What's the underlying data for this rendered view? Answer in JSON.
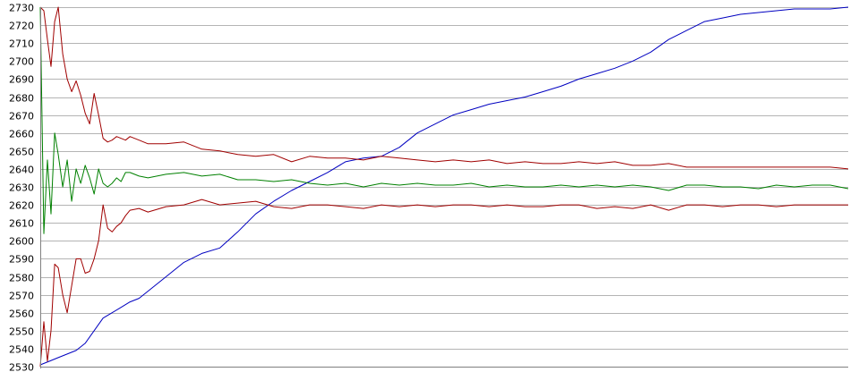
{
  "chart_data": {
    "type": "line",
    "title": "",
    "xlabel": "",
    "ylabel": "",
    "ylim": [
      2530,
      2730
    ],
    "yticks": [
      2530,
      2540,
      2550,
      2560,
      2570,
      2580,
      2590,
      2600,
      2610,
      2620,
      2630,
      2640,
      2650,
      2660,
      2670,
      2680,
      2690,
      2700,
      2710,
      2720,
      2730
    ],
    "xlim": [
      0,
      900
    ],
    "grid": true,
    "legend": "none",
    "series": [
      {
        "color": "#0000c0",
        "x": [
          0,
          10,
          20,
          30,
          40,
          50,
          60,
          70,
          80,
          90,
          100,
          110,
          120,
          140,
          160,
          180,
          200,
          220,
          240,
          260,
          280,
          300,
          320,
          340,
          360,
          380,
          400,
          420,
          440,
          460,
          480,
          500,
          520,
          540,
          560,
          580,
          600,
          620,
          640,
          660,
          680,
          700,
          720,
          740,
          760,
          780,
          800,
          820,
          840,
          860,
          880,
          900
        ],
        "y": [
          2531,
          2533,
          2535,
          2537,
          2539,
          2543,
          2550,
          2557,
          2560,
          2563,
          2566,
          2568,
          2572,
          2580,
          2588,
          2593,
          2596,
          2605,
          2615,
          2622,
          2628,
          2633,
          2638,
          2644,
          2646,
          2647,
          2652,
          2660,
          2665,
          2670,
          2673,
          2676,
          2678,
          2680,
          2683,
          2686,
          2690,
          2693,
          2696,
          2700,
          2705,
          2712,
          2717,
          2722,
          2724,
          2726,
          2727,
          2728,
          2729,
          2729,
          2729,
          2730
        ]
      },
      {
        "color": "#a00000",
        "x": [
          0,
          4,
          8,
          12,
          16,
          20,
          25,
          30,
          35,
          40,
          45,
          50,
          55,
          60,
          65,
          70,
          75,
          80,
          85,
          90,
          95,
          100,
          110,
          120,
          140,
          160,
          180,
          200,
          220,
          240,
          260,
          280,
          300,
          320,
          340,
          360,
          380,
          400,
          420,
          440,
          460,
          480,
          500,
          520,
          540,
          560,
          580,
          600,
          620,
          640,
          660,
          680,
          700,
          720,
          740,
          760,
          780,
          800,
          820,
          840,
          860,
          880,
          900
        ],
        "y": [
          2730,
          2728,
          2712,
          2697,
          2722,
          2730,
          2704,
          2690,
          2683,
          2689,
          2681,
          2671,
          2665,
          2682,
          2670,
          2657,
          2655,
          2656,
          2658,
          2657,
          2656,
          2658,
          2656,
          2654,
          2654,
          2655,
          2651,
          2650,
          2648,
          2647,
          2648,
          2644,
          2647,
          2646,
          2646,
          2645,
          2647,
          2646,
          2645,
          2644,
          2645,
          2644,
          2645,
          2643,
          2644,
          2643,
          2643,
          2644,
          2643,
          2644,
          2642,
          2642,
          2643,
          2641,
          2641,
          2641,
          2641,
          2641,
          2641,
          2641,
          2641,
          2641,
          2640
        ]
      },
      {
        "color": "#008000",
        "x": [
          0,
          4,
          8,
          12,
          16,
          20,
          25,
          30,
          35,
          40,
          45,
          50,
          55,
          60,
          65,
          70,
          75,
          80,
          85,
          90,
          95,
          100,
          110,
          120,
          140,
          160,
          180,
          200,
          220,
          240,
          260,
          280,
          300,
          320,
          340,
          360,
          380,
          400,
          420,
          440,
          460,
          480,
          500,
          520,
          540,
          560,
          580,
          600,
          620,
          640,
          660,
          680,
          700,
          720,
          740,
          760,
          780,
          800,
          820,
          840,
          860,
          880,
          900
        ],
        "y": [
          2730,
          2604,
          2645,
          2615,
          2660,
          2648,
          2630,
          2645,
          2622,
          2640,
          2632,
          2642,
          2635,
          2626,
          2640,
          2632,
          2630,
          2632,
          2635,
          2633,
          2638,
          2638,
          2636,
          2635,
          2637,
          2638,
          2636,
          2637,
          2634,
          2634,
          2633,
          2634,
          2632,
          2631,
          2632,
          2630,
          2632,
          2631,
          2632,
          2631,
          2631,
          2632,
          2630,
          2631,
          2630,
          2630,
          2631,
          2630,
          2631,
          2630,
          2631,
          2630,
          2628,
          2631,
          2631,
          2630,
          2630,
          2629,
          2631,
          2630,
          2631,
          2631,
          2629
        ]
      },
      {
        "color": "#a00000",
        "x": [
          0,
          4,
          8,
          12,
          16,
          20,
          25,
          30,
          35,
          40,
          45,
          50,
          55,
          60,
          65,
          70,
          75,
          80,
          85,
          90,
          95,
          100,
          110,
          120,
          140,
          160,
          180,
          200,
          220,
          240,
          260,
          280,
          300,
          320,
          340,
          360,
          380,
          400,
          420,
          440,
          460,
          480,
          500,
          520,
          540,
          560,
          580,
          600,
          620,
          640,
          660,
          680,
          700,
          720,
          740,
          760,
          780,
          800,
          820,
          840,
          860,
          880,
          900
        ],
        "y": [
          2530,
          2555,
          2533,
          2550,
          2587,
          2585,
          2570,
          2560,
          2575,
          2590,
          2590,
          2582,
          2583,
          2590,
          2600,
          2620,
          2607,
          2605,
          2608,
          2610,
          2614,
          2617,
          2618,
          2616,
          2619,
          2620,
          2623,
          2620,
          2621,
          2622,
          2619,
          2618,
          2620,
          2620,
          2619,
          2618,
          2620,
          2619,
          2620,
          2619,
          2620,
          2620,
          2619,
          2620,
          2619,
          2619,
          2620,
          2620,
          2618,
          2619,
          2618,
          2620,
          2617,
          2620,
          2620,
          2619,
          2620,
          2620,
          2619,
          2620,
          2620,
          2620,
          2620
        ]
      }
    ]
  }
}
